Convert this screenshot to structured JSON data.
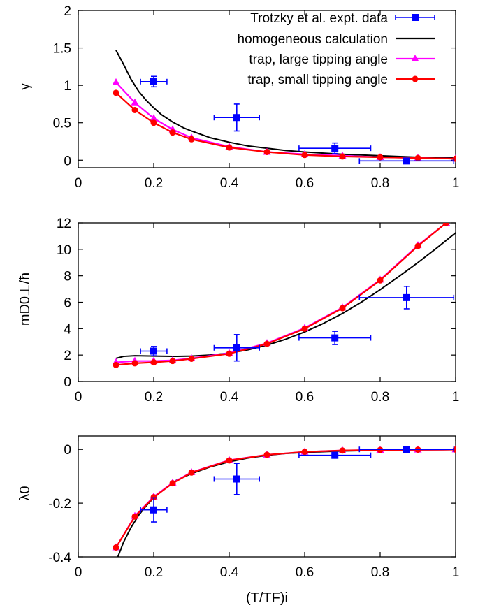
{
  "chart_data": [
    {
      "type": "line",
      "ylabel": "γ",
      "xlabel": "",
      "xlim": [
        0,
        1
      ],
      "ylim": [
        -0.1,
        2
      ],
      "xticks": [
        0,
        0.2,
        0.4,
        0.6,
        0.8,
        1
      ],
      "xticklabels": [
        "0",
        "0.2",
        "0.4",
        "0.6",
        "0.8",
        "1"
      ],
      "yticks": [
        0,
        0.5,
        1,
        1.5,
        2
      ],
      "yticklabels": [
        "0",
        "0.5",
        "1",
        "1.5",
        "2"
      ],
      "legend": {
        "position": "top-right",
        "entries": [
          {
            "label": "Trotzky et al. expt. data",
            "series": "expt"
          },
          {
            "label": "homogeneous calculation",
            "series": "hom"
          },
          {
            "label": "trap, large tipping angle",
            "series": "large"
          },
          {
            "label": "trap, small tipping angle",
            "series": "small"
          }
        ]
      },
      "series": [
        {
          "key": "expt",
          "color": "#0000ff",
          "marker": "square",
          "line": false,
          "points": [
            {
              "x": 0.2,
              "y": 1.05,
              "xerr": 0.035,
              "yerr": 0.07
            },
            {
              "x": 0.42,
              "y": 0.57,
              "xerr": 0.06,
              "yerr": 0.18
            },
            {
              "x": 0.68,
              "y": 0.16,
              "xerr": 0.095,
              "yerr": 0.07
            },
            {
              "x": 0.87,
              "y": -0.01,
              "xerr": 0.125,
              "yerr": 0.03
            }
          ]
        },
        {
          "key": "hom",
          "color": "#000000",
          "marker": "none",
          "line": true,
          "x": [
            0.1,
            0.12,
            0.14,
            0.16,
            0.18,
            0.2,
            0.22,
            0.25,
            0.28,
            0.3,
            0.35,
            0.4,
            0.45,
            0.5,
            0.55,
            0.6,
            0.7,
            0.8,
            0.9,
            1.0
          ],
          "y": [
            1.47,
            1.28,
            1.08,
            0.92,
            0.8,
            0.7,
            0.61,
            0.51,
            0.43,
            0.39,
            0.3,
            0.24,
            0.19,
            0.16,
            0.13,
            0.11,
            0.08,
            0.06,
            0.04,
            0.03
          ]
        },
        {
          "key": "large",
          "color": "#ff00ff",
          "marker": "triangle",
          "line": true,
          "x": [
            0.1,
            0.15,
            0.2,
            0.25,
            0.3,
            0.4,
            0.5,
            0.6,
            0.7,
            0.8,
            0.9,
            1.0
          ],
          "y": [
            1.04,
            0.77,
            0.56,
            0.41,
            0.3,
            0.18,
            0.11,
            0.08,
            0.06,
            0.04,
            0.03,
            0.02
          ]
        },
        {
          "key": "small",
          "color": "#ff0000",
          "marker": "circle",
          "line": true,
          "x": [
            0.1,
            0.15,
            0.2,
            0.25,
            0.3,
            0.4,
            0.5,
            0.6,
            0.7,
            0.8,
            0.9,
            1.0
          ],
          "y": [
            0.9,
            0.67,
            0.5,
            0.37,
            0.28,
            0.17,
            0.11,
            0.07,
            0.05,
            0.04,
            0.03,
            0.02
          ]
        }
      ]
    },
    {
      "type": "line",
      "ylabel": "mD0⊥/ħ",
      "xlabel": "",
      "xlim": [
        0,
        1
      ],
      "ylim": [
        0,
        12
      ],
      "xticks": [
        0,
        0.2,
        0.4,
        0.6,
        0.8,
        1
      ],
      "xticklabels": [
        "0",
        "0.2",
        "0.4",
        "0.6",
        "0.8",
        "1"
      ],
      "yticks": [
        0,
        2,
        4,
        6,
        8,
        10,
        12
      ],
      "yticklabels": [
        "0",
        "2",
        "4",
        "6",
        "8",
        "10",
        "12"
      ],
      "series": [
        {
          "key": "expt",
          "color": "#0000ff",
          "marker": "square",
          "line": false,
          "points": [
            {
              "x": 0.2,
              "y": 2.3,
              "xerr": 0.035,
              "yerr": 0.35
            },
            {
              "x": 0.42,
              "y": 2.55,
              "xerr": 0.06,
              "yerr": 1.0
            },
            {
              "x": 0.68,
              "y": 3.3,
              "xerr": 0.095,
              "yerr": 0.5
            },
            {
              "x": 0.87,
              "y": 6.35,
              "xerr": 0.125,
              "yerr": 0.85
            }
          ]
        },
        {
          "key": "hom",
          "color": "#000000",
          "marker": "none",
          "line": true,
          "x": [
            0.1,
            0.12,
            0.15,
            0.2,
            0.25,
            0.3,
            0.35,
            0.4,
            0.45,
            0.5,
            0.55,
            0.6,
            0.65,
            0.7,
            0.75,
            0.8,
            0.85,
            0.9,
            0.95,
            1.0
          ],
          "y": [
            1.75,
            1.9,
            1.95,
            1.92,
            1.9,
            1.92,
            2.0,
            2.15,
            2.4,
            2.75,
            3.2,
            3.75,
            4.4,
            5.15,
            6.0,
            6.95,
            7.95,
            9.0,
            10.1,
            11.25
          ]
        },
        {
          "key": "large",
          "color": "#ff00ff",
          "marker": "triangle",
          "line": true,
          "x": [
            0.1,
            0.15,
            0.2,
            0.25,
            0.3,
            0.4,
            0.5,
            0.6,
            0.7,
            0.8,
            0.9,
            0.975
          ],
          "y": [
            1.45,
            1.55,
            1.55,
            1.6,
            1.75,
            2.15,
            2.9,
            4.05,
            5.6,
            7.7,
            10.3,
            12.0
          ]
        },
        {
          "key": "small",
          "color": "#ff0000",
          "marker": "circle",
          "line": true,
          "x": [
            0.1,
            0.15,
            0.2,
            0.25,
            0.3,
            0.4,
            0.5,
            0.6,
            0.7,
            0.8,
            0.9,
            0.975
          ],
          "y": [
            1.25,
            1.38,
            1.45,
            1.55,
            1.72,
            2.1,
            2.85,
            4.0,
            5.55,
            7.65,
            10.25,
            12.0
          ]
        }
      ]
    },
    {
      "type": "line",
      "ylabel": "λ0",
      "xlabel": "(T/TF)i",
      "xlim": [
        0,
        1
      ],
      "ylim": [
        -0.4,
        0.05
      ],
      "xticks": [
        0,
        0.2,
        0.4,
        0.6,
        0.8,
        1
      ],
      "xticklabels": [
        "0",
        "0.2",
        "0.4",
        "0.6",
        "0.8",
        "1"
      ],
      "yticks": [
        -0.4,
        -0.2,
        0
      ],
      "yticklabels": [
        "-0.4",
        "-0.2",
        "0"
      ],
      "series": [
        {
          "key": "expt",
          "color": "#0000ff",
          "marker": "square",
          "line": false,
          "points": [
            {
              "x": 0.2,
              "y": -0.225,
              "xerr": 0.035,
              "yerr": 0.045
            },
            {
              "x": 0.42,
              "y": -0.11,
              "xerr": 0.06,
              "yerr": 0.058
            },
            {
              "x": 0.68,
              "y": -0.022,
              "xerr": 0.095,
              "yerr": 0.01
            },
            {
              "x": 0.87,
              "y": 0.0,
              "xerr": 0.125,
              "yerr": 0.006
            }
          ]
        },
        {
          "key": "hom",
          "color": "#000000",
          "marker": "none",
          "line": true,
          "x": [
            0.105,
            0.12,
            0.14,
            0.16,
            0.18,
            0.2,
            0.23,
            0.26,
            0.3,
            0.35,
            0.4,
            0.45,
            0.5,
            0.55,
            0.6,
            0.7,
            0.8,
            0.9,
            1.0
          ],
          "y": [
            -0.4,
            -0.345,
            -0.29,
            -0.245,
            -0.21,
            -0.18,
            -0.145,
            -0.115,
            -0.09,
            -0.065,
            -0.046,
            -0.032,
            -0.022,
            -0.015,
            -0.011,
            -0.006,
            -0.003,
            -0.0015,
            -0.0008
          ]
        },
        {
          "key": "large",
          "color": "#ff00ff",
          "marker": "triangle",
          "line": true,
          "x": [
            0.1,
            0.15,
            0.2,
            0.25,
            0.3,
            0.4,
            0.5,
            0.6,
            0.7,
            0.8,
            0.9,
            1.0
          ],
          "y": [
            -0.365,
            -0.248,
            -0.176,
            -0.124,
            -0.085,
            -0.04,
            -0.02,
            -0.009,
            -0.004,
            -0.002,
            -0.001,
            -0.0005
          ]
        },
        {
          "key": "small",
          "color": "#ff0000",
          "marker": "circle",
          "line": true,
          "x": [
            0.1,
            0.15,
            0.2,
            0.25,
            0.3,
            0.4,
            0.5,
            0.6,
            0.7,
            0.8,
            0.9,
            1.0
          ],
          "y": [
            -0.365,
            -0.25,
            -0.178,
            -0.126,
            -0.086,
            -0.041,
            -0.02,
            -0.009,
            -0.004,
            -0.002,
            -0.001,
            -0.0005
          ]
        }
      ]
    }
  ]
}
